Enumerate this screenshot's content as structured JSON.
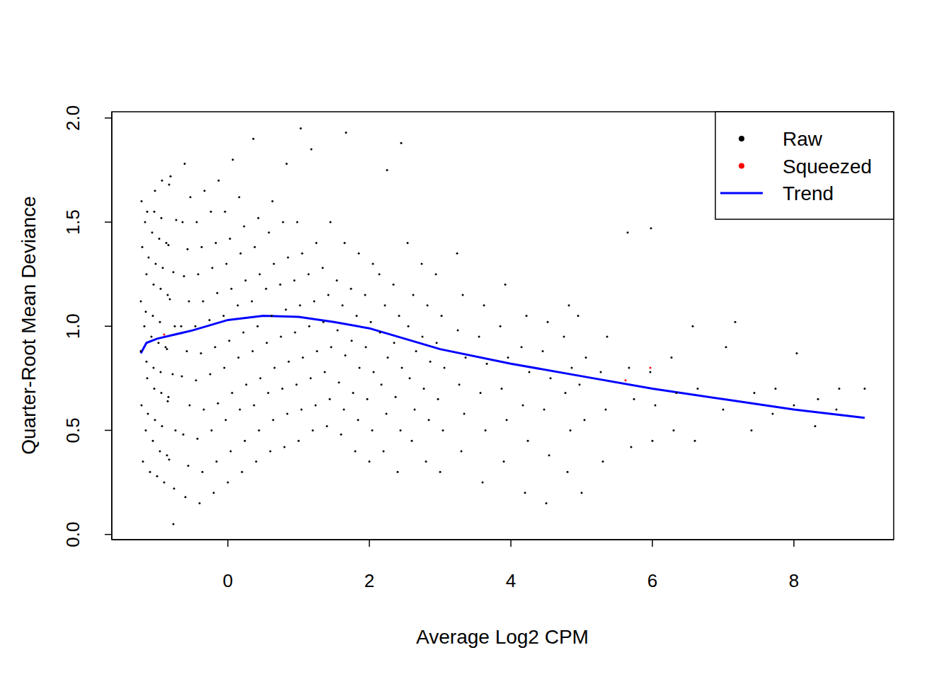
{
  "chart_data": {
    "type": "scatter",
    "x_label": "Average Log2 CPM",
    "y_label": "Quarter-Root Mean Deviance",
    "xlim": [
      -1.64,
      9.41
    ],
    "ylim": [
      -0.025,
      2.03
    ],
    "xticks": [
      0,
      2,
      4,
      6,
      8
    ],
    "yticks": [
      {
        "value": 0,
        "label": "0.0"
      },
      0.5,
      {
        "value": 1,
        "label": "1.0"
      },
      1.5,
      {
        "value": 2,
        "label": "2.0"
      }
    ],
    "grid": false,
    "legend": "top-right",
    "series": [
      {
        "name": "Raw",
        "type": "scatter",
        "marker": "dot",
        "color": "#000000",
        "x": [
          -1.2,
          -1.16,
          -1.22,
          -1.14,
          -1.23,
          -1.18,
          -1.23,
          -1.15,
          -1.21,
          -1.17,
          -1.22,
          -1.1,
          -1.06,
          -1.13,
          -1.04,
          -1.15,
          -1.08,
          -1.16,
          -1.05,
          -1.12,
          -1.07,
          -1.14,
          -1.03,
          -1.0,
          -0.96,
          -1.03,
          -0.94,
          -1.05,
          -0.98,
          -1.06,
          -0.95,
          -1.02,
          -0.97,
          -1.04,
          -0.93,
          -0.9,
          -0.86,
          -0.93,
          -0.84,
          -0.95,
          -0.88,
          -0.96,
          -0.85,
          -0.92,
          -0.87,
          -0.94,
          -0.83,
          -0.77,
          -0.76,
          -0.83,
          -0.74,
          -0.85,
          -0.78,
          -0.86,
          -0.75,
          -0.82,
          -0.77,
          -0.84,
          -0.73,
          -0.81,
          -0.6,
          -0.56,
          -0.63,
          -0.54,
          -0.65,
          -0.58,
          -0.66,
          -0.55,
          -0.62,
          -0.57,
          -0.64,
          -0.53,
          -0.61,
          -0.4,
          -0.36,
          -0.43,
          -0.34,
          -0.45,
          -0.38,
          -0.46,
          -0.35,
          -0.42,
          -0.37,
          -0.44,
          -0.33,
          -0.2,
          -0.16,
          -0.23,
          -0.14,
          -0.25,
          -0.18,
          -0.26,
          -0.15,
          -0.22,
          -0.17,
          -0.24,
          -0.13,
          0,
          0.04,
          -0.03,
          0.06,
          -0.05,
          0.02,
          -0.06,
          0.05,
          -0.02,
          0.03,
          -0.04,
          0.07,
          0.2,
          0.24,
          0.17,
          0.26,
          0.15,
          0.22,
          0.14,
          0.25,
          0.18,
          0.23,
          0.16,
          0.4,
          0.44,
          0.37,
          0.46,
          0.35,
          0.42,
          0.34,
          0.45,
          0.38,
          0.43,
          0.36,
          0.6,
          0.64,
          0.57,
          0.66,
          0.55,
          0.62,
          0.54,
          0.65,
          0.58,
          0.63,
          0.8,
          0.84,
          0.77,
          0.86,
          0.75,
          0.82,
          0.74,
          0.85,
          0.78,
          0.83,
          1.0,
          1.04,
          0.97,
          1.06,
          0.95,
          1.02,
          0.94,
          1.05,
          0.98,
          1.03,
          1.2,
          1.24,
          1.17,
          1.26,
          1.15,
          1.22,
          1.14,
          1.25,
          1.18,
          1.4,
          1.44,
          1.37,
          1.46,
          1.35,
          1.42,
          1.34,
          1.45,
          1.6,
          1.64,
          1.57,
          1.66,
          1.55,
          1.62,
          1.54,
          1.65,
          1.67,
          1.8,
          1.84,
          1.77,
          1.86,
          1.75,
          1.82,
          1.74,
          1.85,
          2.0,
          2.04,
          1.97,
          2.06,
          1.95,
          2.02,
          1.94,
          2.05,
          2.2,
          2.24,
          2.17,
          2.26,
          2.15,
          2.22,
          2.14,
          2.25,
          2.4,
          2.44,
          2.37,
          2.46,
          2.35,
          2.42,
          2.34,
          2.45,
          2.6,
          2.64,
          2.57,
          2.66,
          2.55,
          2.62,
          2.54,
          2.8,
          2.84,
          2.77,
          2.86,
          2.75,
          2.82,
          2.74,
          3.0,
          3.04,
          2.97,
          3.06,
          2.95,
          3.02,
          2.94,
          3.3,
          3.34,
          3.27,
          3.36,
          3.25,
          3.32,
          3.24,
          3.6,
          3.64,
          3.57,
          3.66,
          3.55,
          3.62,
          3.9,
          3.94,
          3.87,
          3.96,
          3.85,
          3.92,
          4.2,
          4.24,
          4.17,
          4.26,
          4.15,
          4.22,
          4.5,
          4.54,
          4.47,
          4.56,
          4.45,
          4.52,
          4.8,
          4.84,
          4.77,
          4.86,
          4.75,
          4.82,
          5.0,
          5.04,
          4.97,
          5.06,
          4.95,
          5.3,
          5.34,
          5.27,
          5.36,
          5.7,
          5.74,
          5.67,
          5.65,
          6.0,
          6.04,
          5.97,
          5.98,
          6.3,
          6.34,
          6.27,
          6.6,
          6.64,
          6.57,
          7.0,
          7.04,
          7.17,
          7.4,
          7.44,
          7.7,
          7.74,
          8.0,
          8.04,
          8.3,
          8.34,
          8.6,
          8.64,
          9.0
        ],
        "values": [
          0.35,
          0.5,
          0.62,
          0.75,
          0.88,
          1.0,
          1.12,
          1.25,
          1.38,
          1.5,
          1.6,
          0.3,
          0.45,
          0.58,
          0.7,
          0.83,
          0.95,
          1.07,
          1.2,
          1.33,
          1.45,
          1.55,
          1.65,
          0.28,
          0.4,
          0.55,
          0.68,
          0.8,
          0.92,
          1.05,
          1.18,
          1.3,
          1.42,
          1.55,
          1.7,
          0.25,
          0.38,
          0.52,
          0.66,
          0.78,
          0.9,
          1.02,
          1.15,
          1.28,
          1.4,
          1.52,
          1.68,
          0.05,
          0.22,
          0.36,
          0.5,
          0.64,
          0.77,
          0.89,
          1.0,
          1.13,
          1.26,
          1.39,
          1.51,
          1.72,
          0.18,
          0.33,
          0.48,
          0.62,
          0.76,
          0.88,
          1.0,
          1.12,
          1.24,
          1.37,
          1.5,
          1.62,
          1.78,
          0.15,
          0.3,
          0.46,
          0.6,
          0.74,
          0.87,
          1.0,
          1.12,
          1.25,
          1.38,
          1.5,
          1.65,
          0.2,
          0.35,
          0.5,
          0.63,
          0.77,
          0.9,
          1.03,
          1.16,
          1.28,
          1.4,
          1.55,
          1.7,
          0.25,
          0.4,
          0.55,
          0.68,
          0.8,
          0.93,
          1.05,
          1.18,
          1.3,
          1.42,
          1.55,
          1.8,
          0.3,
          0.45,
          0.6,
          0.72,
          0.85,
          0.97,
          1.1,
          1.22,
          1.35,
          1.48,
          1.62,
          0.35,
          0.5,
          0.62,
          0.75,
          0.88,
          1.0,
          1.12,
          1.25,
          1.38,
          1.52,
          1.9,
          0.4,
          0.55,
          0.68,
          0.8,
          0.92,
          1.05,
          1.18,
          1.3,
          1.45,
          1.6,
          0.42,
          0.58,
          0.7,
          0.83,
          0.95,
          1.08,
          1.2,
          1.33,
          1.5,
          1.78,
          0.45,
          0.6,
          0.72,
          0.85,
          0.97,
          1.1,
          1.22,
          1.35,
          1.5,
          1.95,
          0.5,
          0.62,
          0.75,
          0.88,
          1.0,
          1.12,
          1.25,
          1.4,
          1.85,
          0.52,
          0.65,
          0.78,
          0.9,
          1.02,
          1.15,
          1.28,
          1.5,
          0.48,
          0.6,
          0.73,
          0.86,
          0.98,
          1.1,
          1.22,
          1.4,
          1.93,
          0.4,
          0.55,
          0.68,
          0.8,
          0.93,
          1.05,
          1.18,
          1.35,
          0.35,
          0.5,
          0.65,
          0.78,
          0.9,
          1.02,
          1.15,
          1.3,
          0.4,
          0.58,
          0.72,
          0.85,
          0.97,
          1.1,
          1.25,
          1.75,
          0.3,
          0.5,
          0.66,
          0.8,
          0.92,
          1.05,
          1.2,
          1.88,
          0.45,
          0.6,
          0.75,
          0.88,
          1.0,
          1.15,
          1.4,
          0.35,
          0.55,
          0.7,
          0.83,
          0.95,
          1.1,
          1.3,
          0.3,
          0.5,
          0.65,
          0.8,
          0.92,
          1.05,
          1.25,
          0.4,
          0.58,
          0.72,
          0.85,
          0.98,
          1.15,
          1.35,
          0.25,
          0.5,
          0.68,
          0.82,
          0.95,
          1.1,
          0.35,
          0.55,
          0.7,
          0.85,
          1.0,
          1.2,
          0.2,
          0.45,
          0.62,
          0.78,
          0.9,
          1.05,
          0.15,
          0.38,
          0.6,
          0.75,
          0.88,
          1.02,
          0.3,
          0.5,
          0.68,
          0.8,
          0.95,
          1.1,
          0.2,
          0.55,
          0.72,
          0.85,
          1.05,
          0.35,
          0.6,
          0.78,
          0.95,
          0.42,
          0.65,
          0.8,
          1.45,
          0.45,
          0.62,
          0.78,
          1.47,
          0.5,
          0.68,
          0.85,
          0.45,
          0.7,
          1.0,
          0.6,
          0.9,
          1.02,
          0.5,
          0.68,
          0.58,
          0.7,
          0.62,
          0.87,
          0.52,
          0.65,
          0.6,
          0.7,
          0.7
        ]
      },
      {
        "name": "Squeezed",
        "type": "scatter",
        "marker": "dot",
        "color": "#ff0000",
        "x": [
          -0.9,
          5.62,
          5.97
        ],
        "values": [
          0.96,
          0.74,
          0.8
        ]
      },
      {
        "name": "Trend",
        "type": "line",
        "line_style": "solid",
        "color": "#0000ff",
        "x": [
          -1.23,
          -1.15,
          -1.0,
          -0.5,
          0,
          0.5,
          1,
          1.5,
          2,
          3,
          4,
          5,
          6,
          7,
          8,
          9
        ],
        "values": [
          0.87,
          0.92,
          0.94,
          0.98,
          1.03,
          1.05,
          1.045,
          1.02,
          0.99,
          0.89,
          0.82,
          0.76,
          0.7,
          0.65,
          0.6,
          0.56
        ]
      }
    ]
  }
}
